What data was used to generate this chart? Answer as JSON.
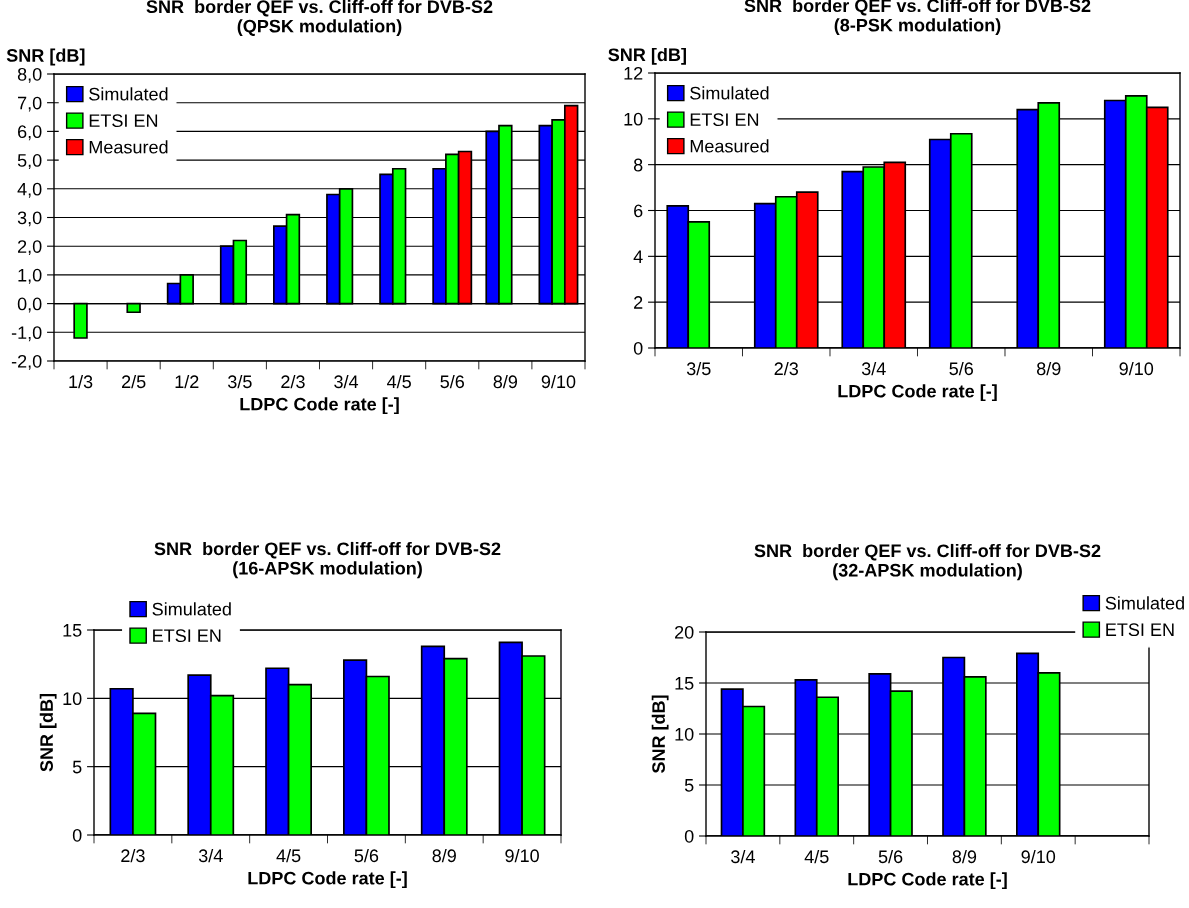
{
  "chart_data": [
    {
      "type": "bar",
      "title": "SNR  border QEF vs. Cliff-off for DVB-S2\n(QPSK modulation)",
      "xlabel": "LDPC Code rate [-]",
      "ylabel": "SNR [dB]",
      "categories": [
        "1/3",
        "2/5",
        "1/2",
        "3/5",
        "2/3",
        "3/4",
        "4/5",
        "5/6",
        "8/9",
        "9/10"
      ],
      "series": [
        {
          "name": "Simulated",
          "color": "#0000ff",
          "values": [
            null,
            null,
            0.7,
            2.0,
            2.7,
            3.8,
            4.5,
            4.7,
            6.0,
            6.2
          ]
        },
        {
          "name": "ETSI EN",
          "color": "#00ff00",
          "values": [
            -1.2,
            -0.3,
            1.0,
            2.2,
            3.1,
            4.0,
            4.7,
            5.2,
            6.2,
            6.4
          ]
        },
        {
          "name": "Measured",
          "color": "#ff0000",
          "values": [
            null,
            null,
            null,
            null,
            null,
            null,
            null,
            5.3,
            null,
            6.9
          ]
        }
      ],
      "ylim": [
        -2,
        8
      ],
      "yticks": [
        {
          "value": -2,
          "label": "-2,0"
        },
        {
          "value": -1,
          "label": "-1,0"
        },
        {
          "value": 0,
          "label": "0,0"
        },
        {
          "value": 1,
          "label": "1,0"
        },
        {
          "value": 2,
          "label": "2,0"
        },
        {
          "value": 3,
          "label": "3,0"
        },
        {
          "value": 4,
          "label": "4,0"
        },
        {
          "value": 5,
          "label": "5,0"
        },
        {
          "value": 6,
          "label": "6,0"
        },
        {
          "value": 7,
          "label": "7,0"
        },
        {
          "value": 8,
          "label": "8,0"
        }
      ],
      "grid": "y",
      "legend": "top left"
    },
    {
      "type": "bar",
      "title": "SNR  border QEF vs. Cliff-off for DVB-S2\n(8-PSK modulation)",
      "xlabel": "LDPC Code rate [-]",
      "ylabel": "SNR [dB]",
      "categories": [
        "3/5",
        "2/3",
        "3/4",
        "5/6",
        "8/9",
        "9/10"
      ],
      "series": [
        {
          "name": "Simulated",
          "color": "#0000ff",
          "values": [
            6.2,
            6.3,
            7.7,
            9.1,
            10.4,
            10.8
          ]
        },
        {
          "name": "ETSI EN",
          "color": "#00ff00",
          "values": [
            5.5,
            6.6,
            7.9,
            9.35,
            10.7,
            11.0
          ]
        },
        {
          "name": "Measured",
          "color": "#ff0000",
          "values": [
            null,
            6.8,
            8.1,
            null,
            null,
            10.5
          ]
        }
      ],
      "ylim": [
        0,
        12
      ],
      "yticks": [
        0,
        2,
        4,
        6,
        8,
        10,
        12
      ],
      "grid": "y",
      "legend": "top left"
    },
    {
      "type": "bar",
      "title": "SNR  border QEF vs. Cliff-off for DVB-S2\n(16-APSK modulation)",
      "xlabel": "LDPC Code rate [-]",
      "ylabel": "SNR [dB]",
      "categories": [
        "2/3",
        "3/4",
        "4/5",
        "5/6",
        "8/9",
        "9/10"
      ],
      "series": [
        {
          "name": "Simulated",
          "color": "#0000ff",
          "values": [
            10.7,
            11.7,
            12.2,
            12.8,
            13.8,
            14.1
          ]
        },
        {
          "name": "ETSI EN",
          "color": "#00ff00",
          "values": [
            8.9,
            10.2,
            11.0,
            11.6,
            12.9,
            13.1
          ]
        }
      ],
      "ylim": [
        0,
        15
      ],
      "yticks": [
        0,
        5,
        10,
        15
      ],
      "grid": "y",
      "legend": "top left"
    },
    {
      "type": "bar",
      "title": "SNR  border QEF vs. Cliff-off for DVB-S2\n(32-APSK modulation)",
      "xlabel": "LDPC Code rate [-]",
      "ylabel": "SNR [dB]",
      "categories": [
        "3/4",
        "4/5",
        "5/6",
        "8/9",
        "9/10",
        null
      ],
      "series": [
        {
          "name": "Simulated",
          "color": "#0000ff",
          "values": [
            14.4,
            15.3,
            15.9,
            17.5,
            17.9,
            null
          ]
        },
        {
          "name": "ETSI EN",
          "color": "#00ff00",
          "values": [
            12.7,
            13.6,
            14.2,
            15.6,
            16.0,
            null
          ]
        }
      ],
      "ylim": [
        0,
        20
      ],
      "yticks": [
        0,
        5,
        10,
        15,
        20
      ],
      "grid": "y",
      "legend": "top right"
    }
  ]
}
